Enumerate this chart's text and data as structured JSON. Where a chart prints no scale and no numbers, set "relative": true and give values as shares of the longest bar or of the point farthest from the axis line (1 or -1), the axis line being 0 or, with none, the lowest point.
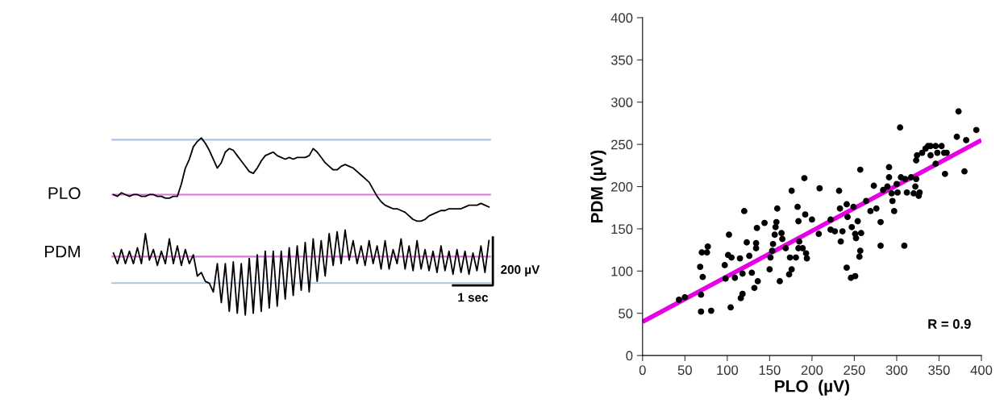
{
  "chart_data": [
    {
      "type": "line",
      "relative": true,
      "line_style": "solid",
      "categories": [
        null,
        null,
        null,
        null,
        null,
        null,
        null,
        null,
        null,
        null,
        null,
        null,
        null,
        null,
        null,
        null,
        null,
        null,
        null,
        null,
        null,
        null,
        null,
        null,
        null,
        null,
        null,
        null,
        null,
        null,
        null,
        null,
        null,
        null,
        null,
        null,
        null,
        null,
        null,
        null,
        null,
        null,
        null,
        null,
        null,
        null,
        null,
        null,
        null,
        null,
        null,
        null,
        null,
        null,
        null,
        null,
        null,
        null,
        null,
        null,
        null,
        null,
        null,
        null,
        null,
        null,
        null,
        null,
        null,
        null,
        null,
        null,
        null,
        null,
        null,
        null,
        null,
        null,
        null,
        null,
        null,
        null,
        null,
        null,
        null,
        null,
        null,
        null,
        null,
        null,
        null,
        null,
        null,
        null,
        null
      ],
      "series": [
        {
          "name": "PLO",
          "color": "#000000",
          "values": [
            0.68,
            0.67,
            0.69,
            0.68,
            0.67,
            0.68,
            0.68,
            0.67,
            0.67,
            0.68,
            0.68,
            0.67,
            0.67,
            0.66,
            0.66,
            0.67,
            0.67,
            0.74,
            0.83,
            0.88,
            0.95,
            0.98,
            1.0,
            0.97,
            0.93,
            0.88,
            0.83,
            0.86,
            0.92,
            0.94,
            0.93,
            0.9,
            0.87,
            0.84,
            0.81,
            0.8,
            0.83,
            0.87,
            0.9,
            0.91,
            0.92,
            0.9,
            0.89,
            0.88,
            0.89,
            0.88,
            0.89,
            0.89,
            0.89,
            0.9,
            0.94,
            0.92,
            0.89,
            0.86,
            0.84,
            0.82,
            0.82,
            0.84,
            0.85,
            0.84,
            0.83,
            0.81,
            0.79,
            0.77,
            0.75,
            0.71,
            0.67,
            0.64,
            0.62,
            0.61,
            0.6,
            0.6,
            0.59,
            0.58,
            0.56,
            0.54,
            0.53,
            0.53,
            0.54,
            0.56,
            0.57,
            0.58,
            0.59,
            0.59,
            0.6,
            0.6,
            0.6,
            0.6,
            0.61,
            0.62,
            0.62,
            0.62,
            0.63,
            0.62,
            0.61
          ]
        },
        {
          "name": "PDM",
          "color": "#000000",
          "values": [
            0.35,
            0.29,
            0.37,
            0.29,
            0.36,
            0.29,
            0.38,
            0.29,
            0.46,
            0.31,
            0.37,
            0.28,
            0.36,
            0.29,
            0.43,
            0.29,
            0.39,
            0.28,
            0.37,
            0.29,
            0.34,
            0.22,
            0.24,
            0.19,
            0.18,
            0.13,
            0.29,
            0.07,
            0.29,
            0.02,
            0.3,
            0.01,
            0.29,
            0.0,
            0.32,
            0.01,
            0.34,
            0.02,
            0.36,
            0.04,
            0.36,
            0.05,
            0.36,
            0.09,
            0.38,
            0.11,
            0.39,
            0.14,
            0.41,
            0.13,
            0.43,
            0.19,
            0.42,
            0.22,
            0.46,
            0.28,
            0.47,
            0.29,
            0.48,
            0.31,
            0.42,
            0.29,
            0.39,
            0.28,
            0.42,
            0.29,
            0.39,
            0.26,
            0.42,
            0.26,
            0.37,
            0.29,
            0.43,
            0.26,
            0.39,
            0.25,
            0.42,
            0.26,
            0.37,
            0.25,
            0.36,
            0.24,
            0.39,
            0.25,
            0.36,
            0.23,
            0.37,
            0.24,
            0.36,
            0.23,
            0.35,
            0.25,
            0.39,
            0.24,
            0.42
          ]
        }
      ],
      "ref_lines": [
        {
          "axis": "y",
          "value": 0.99,
          "color": "#a9c4e0"
        },
        {
          "axis": "y",
          "value": 0.68,
          "color": "#e070e0"
        },
        {
          "axis": "y",
          "value": 0.33,
          "color": "#e070e0"
        },
        {
          "axis": "y",
          "value": 0.18,
          "color": "#a9c4e0"
        }
      ],
      "annotations": [
        "200 µV",
        "1 sec"
      ]
    },
    {
      "type": "scatter",
      "xlabel": "PLO  (µV)",
      "ylabel": "PDM (µV)",
      "grid": false,
      "xlim": [
        0,
        400
      ],
      "ylim": [
        0,
        400
      ],
      "xticks": [
        0,
        50,
        100,
        150,
        200,
        250,
        300,
        350,
        400
      ],
      "yticks": [
        0,
        50,
        100,
        150,
        200,
        250,
        300,
        350,
        400
      ],
      "series": [
        {
          "type": "scatter",
          "color": "#000000",
          "marker": "circle",
          "x": [
            43,
            50,
            68,
            70,
            76,
            77,
            71,
            69,
            69,
            81,
            97,
            98,
            102,
            101,
            105,
            104,
            109,
            115,
            120,
            118,
            116,
            118,
            123,
            126,
            129,
            132,
            134,
            134,
            135,
            136,
            144,
            150,
            151,
            153,
            154,
            156,
            157,
            158,
            159,
            162,
            164,
            165,
            169,
            173,
            176,
            174,
            176,
            181,
            183,
            184,
            185,
            184,
            189,
            191,
            192,
            193,
            194,
            200,
            208,
            209,
            222,
            222,
            227,
            232,
            233,
            236,
            234,
            241,
            242,
            241,
            246,
            251,
            247,
            249,
            251,
            252,
            254,
            257,
            258,
            257,
            256,
            264,
            269,
            273,
            276,
            281,
            281,
            284,
            289,
            291,
            291,
            294,
            295,
            297,
            300,
            301,
            304,
            305,
            309,
            310,
            312,
            317,
            320,
            322,
            323,
            323,
            324,
            326,
            327,
            330,
            334,
            337,
            340,
            340,
            346,
            348,
            346,
            353,
            356,
            359,
            357,
            371,
            373,
            382,
            380,
            394
          ],
          "values": [
            66,
            69,
            105,
            122,
            122,
            129,
            93,
            72,
            52,
            53,
            107,
            91,
            143,
            119,
            116,
            57,
            92,
            115,
            171,
            97,
            68,
            73,
            134,
            118,
            98,
            80,
            133,
            127,
            151,
            88,
            157,
            102,
            116,
            124,
            132,
            143,
            152,
            158,
            174,
            88,
            145,
            138,
            127,
            96,
            102,
            116,
            195,
            116,
            176,
            159,
            135,
            127,
            127,
            210,
            167,
            121,
            115,
            161,
            144,
            198,
            161,
            149,
            147,
            195,
            174,
            147,
            135,
            179,
            164,
            104,
            92,
            94,
            152,
            176,
            144,
            139,
            159,
            220,
            145,
            124,
            117,
            183,
            171,
            201,
            174,
            158,
            130,
            196,
            200,
            223,
            211,
            192,
            183,
            171,
            203,
            193,
            270,
            211,
            130,
            209,
            193,
            211,
            192,
            200,
            209,
            231,
            237,
            189,
            193,
            240,
            245,
            248,
            248,
            237,
            248,
            240,
            227,
            248,
            240,
            240,
            215,
            259,
            289,
            255,
            218,
            267
          ]
        },
        {
          "type": "line",
          "color": "#e600e6",
          "x": [
            0,
            400
          ],
          "values": [
            40,
            255
          ]
        }
      ],
      "annotations": [
        "R = 0.9"
      ]
    }
  ]
}
